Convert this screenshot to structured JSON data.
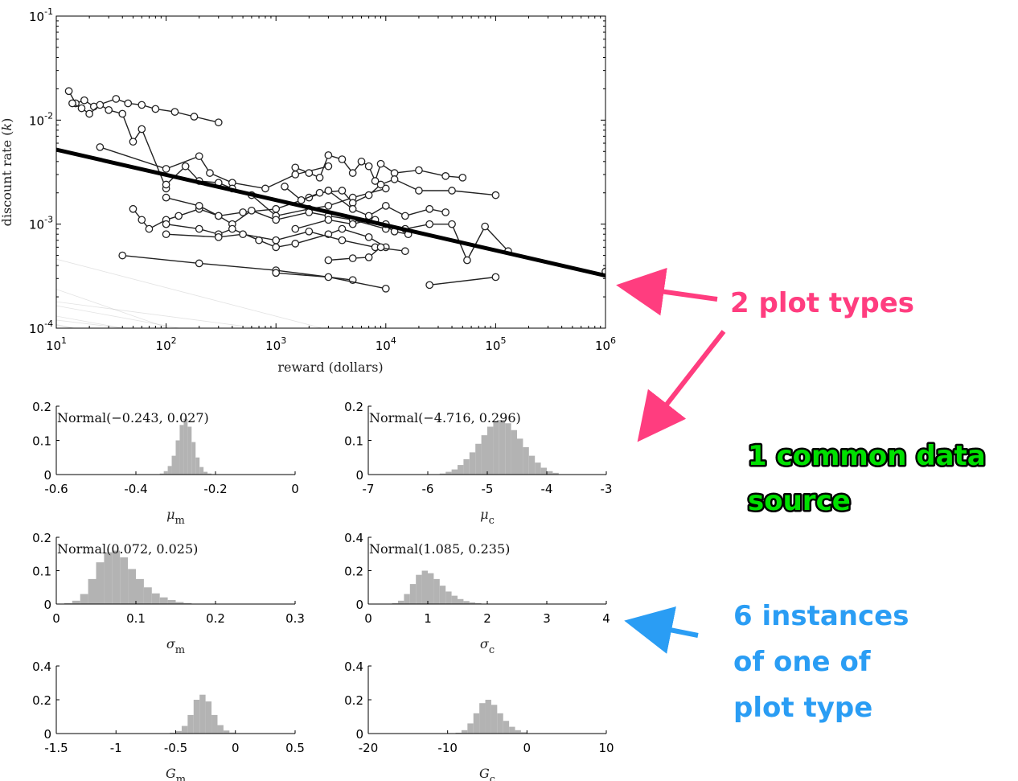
{
  "chart_data": [
    {
      "type": "line",
      "scale": {
        "x": "log",
        "y": "log"
      },
      "xlim": [
        10,
        1000000
      ],
      "ylim": [
        0.0001,
        0.1
      ],
      "xlabel": "reward (dollars)",
      "ylabel": "discount rate (k)",
      "xticks": [
        {
          "base": "10",
          "exp": "1",
          "value": 10
        },
        {
          "base": "10",
          "exp": "2",
          "value": 100
        },
        {
          "base": "10",
          "exp": "3",
          "value": 1000
        },
        {
          "base": "10",
          "exp": "4",
          "value": 10000
        },
        {
          "base": "10",
          "exp": "5",
          "value": 100000
        },
        {
          "base": "10",
          "exp": "6",
          "value": 1000000
        }
      ],
      "yticks": [
        {
          "base": "10",
          "exp": "-1",
          "value": 0.1
        },
        {
          "base": "10",
          "exp": "-2",
          "value": 0.01
        },
        {
          "base": "10",
          "exp": "-3",
          "value": 0.001
        },
        {
          "base": "10",
          "exp": "-4",
          "value": 0.0001
        }
      ],
      "group_mean_line": {
        "x": [
          10,
          1000000
        ],
        "y": [
          0.0052,
          0.00032
        ]
      },
      "posterior_lines": {
        "count": 120,
        "m_mean": -0.243,
        "m_sd": 0.06,
        "c_mean": -4.716,
        "c_sd": 0.5,
        "color": "#9a9a9a"
      },
      "participants": [
        {
          "points": [
            [
              13,
              0.019
            ],
            [
              15,
              0.0145
            ],
            [
              18,
              0.0155
            ],
            [
              22,
              0.0135
            ],
            [
              35,
              0.016
            ],
            [
              45,
              0.0145
            ],
            [
              60,
              0.014
            ],
            [
              80,
              0.0128
            ],
            [
              120,
              0.012
            ],
            [
              180,
              0.0108
            ],
            [
              300,
              0.0095
            ]
          ]
        },
        {
          "points": [
            [
              14,
              0.0145
            ],
            [
              17,
              0.013
            ],
            [
              20,
              0.0115
            ],
            [
              25,
              0.014
            ],
            [
              30,
              0.0125
            ],
            [
              40,
              0.0115
            ],
            [
              50,
              0.0062
            ],
            [
              60,
              0.0082
            ],
            [
              100,
              0.0022
            ]
          ]
        },
        {
          "points": [
            [
              25,
              0.0055
            ],
            [
              100,
              0.0034
            ],
            [
              200,
              0.0045
            ],
            [
              250,
              0.0031
            ],
            [
              400,
              0.0025
            ],
            [
              800,
              0.0022
            ],
            [
              1500,
              0.003
            ],
            [
              3000,
              0.0036
            ]
          ]
        },
        {
          "points": [
            [
              50,
              0.0014
            ],
            [
              60,
              0.0011
            ],
            [
              70,
              0.0009
            ],
            [
              100,
              0.0011
            ],
            [
              130,
              0.0012
            ],
            [
              200,
              0.0014
            ],
            [
              300,
              0.0012
            ],
            [
              500,
              0.0013
            ],
            [
              1000,
              0.0014
            ],
            [
              2000,
              0.0018
            ],
            [
              3000,
              0.0021
            ]
          ]
        },
        {
          "points": [
            [
              100,
              0.0024
            ],
            [
              150,
              0.0036
            ],
            [
              200,
              0.0026
            ],
            [
              300,
              0.0025
            ],
            [
              400,
              0.0022
            ],
            [
              600,
              0.0019
            ],
            [
              1000,
              0.0012
            ],
            [
              2000,
              0.0014
            ],
            [
              3000,
              0.0015
            ],
            [
              5000,
              0.0018
            ],
            [
              10000,
              0.0022
            ]
          ]
        },
        {
          "points": [
            [
              100,
              0.0018
            ],
            [
              200,
              0.0015
            ],
            [
              300,
              0.0012
            ],
            [
              400,
              0.001
            ],
            [
              600,
              0.00135
            ],
            [
              1000,
              0.0011
            ],
            [
              2000,
              0.0013
            ],
            [
              3000,
              0.0012
            ],
            [
              5000,
              0.0011
            ],
            [
              10000,
              0.0009
            ]
          ]
        },
        {
          "points": [
            [
              100,
              0.001
            ],
            [
              200,
              0.0009
            ],
            [
              300,
              0.0008
            ],
            [
              400,
              0.0009
            ],
            [
              700,
              0.0007
            ],
            [
              1000,
              0.0006
            ],
            [
              1500,
              0.00065
            ],
            [
              3000,
              0.0008
            ],
            [
              4000,
              0.0009
            ],
            [
              7000,
              0.00075
            ],
            [
              10000,
              0.0006
            ]
          ]
        },
        {
          "points": [
            [
              100,
              0.0008
            ],
            [
              300,
              0.00075
            ],
            [
              500,
              0.0008
            ],
            [
              1000,
              0.0007
            ],
            [
              2000,
              0.00085
            ],
            [
              4000,
              0.0007
            ],
            [
              8000,
              0.0006
            ],
            [
              15000,
              0.00055
            ]
          ]
        },
        {
          "points": [
            [
              40,
              0.0005
            ],
            [
              200,
              0.00042
            ],
            [
              1000,
              0.00036
            ],
            [
              5000,
              0.00029
            ]
          ]
        },
        {
          "points": [
            [
              1000,
              0.00034
            ],
            [
              3000,
              0.00031
            ],
            [
              10000,
              0.00024
            ]
          ]
        },
        {
          "points": [
            [
              1500,
              0.0009
            ],
            [
              3000,
              0.0011
            ],
            [
              5000,
              0.001
            ],
            [
              7000,
              0.0011
            ],
            [
              10000,
              0.001
            ],
            [
              15000,
              0.0009
            ],
            [
              25000,
              0.001
            ],
            [
              40000,
              0.001
            ],
            [
              55000,
              0.00045
            ],
            [
              80000,
              0.00095
            ],
            [
              130000,
              0.00055
            ]
          ]
        },
        {
          "points": [
            [
              1500,
              0.0035
            ],
            [
              2000,
              0.0031
            ],
            [
              2500,
              0.0028
            ],
            [
              3000,
              0.0046
            ],
            [
              4000,
              0.0042
            ],
            [
              5000,
              0.0031
            ],
            [
              6000,
              0.004
            ],
            [
              7000,
              0.0036
            ],
            [
              8000,
              0.0026
            ],
            [
              9000,
              0.0038
            ],
            [
              12000,
              0.0031
            ],
            [
              20000,
              0.0033
            ],
            [
              35000,
              0.0029
            ],
            [
              50000,
              0.0028
            ]
          ]
        },
        {
          "points": [
            [
              1200,
              0.0023
            ],
            [
              1700,
              0.0017
            ],
            [
              2500,
              0.002
            ],
            [
              4000,
              0.0021
            ],
            [
              5000,
              0.0016
            ],
            [
              7000,
              0.0019
            ],
            [
              9000,
              0.0024
            ],
            [
              12000,
              0.0027
            ],
            [
              20000,
              0.0021
            ],
            [
              40000,
              0.0021
            ],
            [
              100000,
              0.0019
            ]
          ]
        },
        {
          "points": [
            [
              3000,
              0.0021
            ],
            [
              5000,
              0.0014
            ],
            [
              7000,
              0.0012
            ],
            [
              10000,
              0.0015
            ],
            [
              15000,
              0.0012
            ],
            [
              25000,
              0.0014
            ],
            [
              35000,
              0.0013
            ]
          ]
        },
        {
          "points": [
            [
              8000,
              0.0011
            ],
            [
              12000,
              0.00085
            ],
            [
              16000,
              0.0008
            ]
          ]
        },
        {
          "points": [
            [
              3000,
              0.00045
            ],
            [
              5000,
              0.00047
            ],
            [
              7000,
              0.00048
            ],
            [
              9000,
              0.0006
            ]
          ]
        },
        {
          "points": [
            [
              25000,
              0.00026
            ],
            [
              100000,
              0.00031
            ]
          ]
        },
        {
          "points": [
            [
              1000000,
              0.00035
            ]
          ]
        }
      ]
    },
    {
      "type": "histogram",
      "label": "Normal(−0.243, 0.027)",
      "xlabel_base": "μ",
      "xlabel_sub": "m",
      "xlim": [
        -0.6,
        0
      ],
      "ylim": [
        0,
        0.2
      ],
      "xticks": [
        {
          "text": "-0.6",
          "v": -0.6
        },
        {
          "text": "-0.4",
          "v": -0.4
        },
        {
          "text": "-0.2",
          "v": -0.2
        },
        {
          "text": "0",
          "v": 0
        }
      ],
      "yticks": [
        {
          "text": "0",
          "v": 0
        },
        {
          "text": "0.1",
          "v": 0.1
        },
        {
          "text": "0.2",
          "v": 0.2
        }
      ],
      "bins": {
        "start": -0.34,
        "width": 0.01,
        "values": [
          0.003,
          0.01,
          0.025,
          0.055,
          0.1,
          0.145,
          0.163,
          0.14,
          0.095,
          0.05,
          0.022,
          0.008,
          0.003
        ]
      }
    },
    {
      "type": "histogram",
      "label": "Normal(−4.716, 0.296)",
      "xlabel_base": "μ",
      "xlabel_sub": "c",
      "xlim": [
        -7,
        -3
      ],
      "ylim": [
        0,
        0.2
      ],
      "xticks": [
        {
          "text": "-7",
          "v": -7
        },
        {
          "text": "-6",
          "v": -6
        },
        {
          "text": "-5",
          "v": -5
        },
        {
          "text": "-4",
          "v": -4
        },
        {
          "text": "-3",
          "v": -3
        }
      ],
      "yticks": [
        {
          "text": "0",
          "v": 0
        },
        {
          "text": "0.1",
          "v": 0.1
        },
        {
          "text": "0.2",
          "v": 0.2
        }
      ],
      "bins": {
        "start": -5.8,
        "width": 0.1,
        "values": [
          0.003,
          0.008,
          0.015,
          0.028,
          0.045,
          0.065,
          0.09,
          0.115,
          0.14,
          0.155,
          0.16,
          0.15,
          0.13,
          0.105,
          0.08,
          0.055,
          0.035,
          0.02,
          0.01,
          0.005
        ]
      }
    },
    {
      "type": "histogram",
      "label": "Normal(0.072, 0.025)",
      "xlabel_base": "σ",
      "xlabel_sub": "m",
      "xlim": [
        0,
        0.3
      ],
      "ylim": [
        0,
        0.2
      ],
      "xticks": [
        {
          "text": "0",
          "v": 0
        },
        {
          "text": "0.1",
          "v": 0.1
        },
        {
          "text": "0.2",
          "v": 0.2
        },
        {
          "text": "0.3",
          "v": 0.3
        }
      ],
      "yticks": [
        {
          "text": "0",
          "v": 0
        },
        {
          "text": "0.1",
          "v": 0.1
        },
        {
          "text": "0.2",
          "v": 0.2
        }
      ],
      "bins": {
        "start": 0.01,
        "width": 0.01,
        "values": [
          0.003,
          0.01,
          0.03,
          0.075,
          0.125,
          0.155,
          0.16,
          0.14,
          0.105,
          0.075,
          0.05,
          0.032,
          0.02,
          0.012,
          0.006,
          0.003
        ]
      }
    },
    {
      "type": "histogram",
      "label": "Normal(1.085, 0.235)",
      "xlabel_base": "σ",
      "xlabel_sub": "c",
      "xlim": [
        0,
        4
      ],
      "ylim": [
        0,
        0.4
      ],
      "xticks": [
        {
          "text": "0",
          "v": 0
        },
        {
          "text": "1",
          "v": 1
        },
        {
          "text": "2",
          "v": 2
        },
        {
          "text": "3",
          "v": 3
        },
        {
          "text": "4",
          "v": 4
        }
      ],
      "yticks": [
        {
          "text": "0",
          "v": 0
        },
        {
          "text": "0.2",
          "v": 0.2
        },
        {
          "text": "0.4",
          "v": 0.4
        }
      ],
      "bins": {
        "start": 0.4,
        "width": 0.1,
        "values": [
          0.005,
          0.02,
          0.06,
          0.12,
          0.175,
          0.2,
          0.185,
          0.15,
          0.11,
          0.075,
          0.05,
          0.03,
          0.018,
          0.01,
          0.005
        ]
      }
    },
    {
      "type": "histogram",
      "label": "",
      "xlabel_base": "G",
      "xlabel_sub": "m",
      "xlim": [
        -1.5,
        0.5
      ],
      "ylim": [
        0,
        0.4
      ],
      "xticks": [
        {
          "text": "-1.5",
          "v": -1.5
        },
        {
          "text": "-1",
          "v": -1
        },
        {
          "text": "-0.5",
          "v": -0.5
        },
        {
          "text": "0",
          "v": 0
        },
        {
          "text": "0.5",
          "v": 0.5
        }
      ],
      "yticks": [
        {
          "text": "0",
          "v": 0
        },
        {
          "text": "0.2",
          "v": 0.2
        },
        {
          "text": "0.4",
          "v": 0.4
        }
      ],
      "bins": {
        "start": -0.55,
        "width": 0.05,
        "values": [
          0.005,
          0.015,
          0.045,
          0.11,
          0.2,
          0.23,
          0.19,
          0.11,
          0.05,
          0.018,
          0.006
        ]
      }
    },
    {
      "type": "histogram",
      "label": "",
      "xlabel_base": "G",
      "xlabel_sub": "c",
      "xlim": [
        -20,
        10
      ],
      "ylim": [
        0,
        0.4
      ],
      "xticks": [
        {
          "text": "-20",
          "v": -20
        },
        {
          "text": "-10",
          "v": -10
        },
        {
          "text": "0",
          "v": 0
        },
        {
          "text": "10",
          "v": 10
        }
      ],
      "yticks": [
        {
          "text": "0",
          "v": 0
        },
        {
          "text": "0.2",
          "v": 0.2
        },
        {
          "text": "0.4",
          "v": 0.4
        }
      ],
      "bins": {
        "start": -9,
        "width": 0.75,
        "values": [
          0.005,
          0.02,
          0.06,
          0.12,
          0.18,
          0.2,
          0.17,
          0.12,
          0.075,
          0.04,
          0.02,
          0.008
        ]
      }
    }
  ],
  "callouts": {
    "plot_types": "2 plot types",
    "common_source_line1": "1 common data",
    "common_source_line2": "source",
    "instances_line1": "6 instances",
    "instances_line2": "of one of",
    "instances_line3": "plot type"
  },
  "colors": {
    "pink": "#ff3d7f",
    "green": "#00e000",
    "blue": "#2a9df4",
    "hist_bar": "#b3b3b3"
  }
}
